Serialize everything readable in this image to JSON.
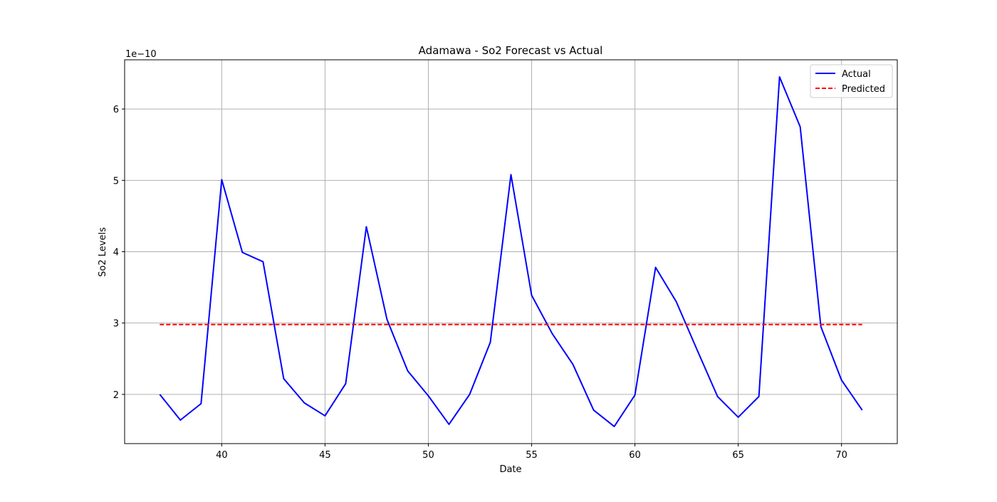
{
  "chart_data": {
    "type": "line",
    "title": "Adamawa - So2 Forecast vs Actual",
    "xlabel": "Date",
    "ylabel": "So2 Levels",
    "y_offset_label": "1e−10",
    "y_scale_factor": 1e-10,
    "xlim": [
      35.3,
      72.7
    ],
    "ylim": [
      1.31,
      6.69
    ],
    "grid": true,
    "legend_position": "top-right",
    "x_ticks": [
      40,
      45,
      50,
      55,
      60,
      65,
      70
    ],
    "y_ticks": [
      2,
      3,
      4,
      5,
      6
    ],
    "x": [
      37,
      38,
      39,
      40,
      41,
      42,
      43,
      44,
      45,
      46,
      47,
      48,
      49,
      50,
      51,
      52,
      53,
      54,
      55,
      56,
      57,
      58,
      59,
      60,
      61,
      62,
      63,
      64,
      65,
      66,
      67,
      68,
      69,
      70,
      71
    ],
    "series": [
      {
        "name": "Actual",
        "color": "#0000ff",
        "style": "solid",
        "values": [
          2.0,
          1.64,
          1.87,
          5.01,
          3.99,
          3.86,
          2.22,
          1.88,
          1.7,
          2.15,
          4.35,
          3.05,
          2.33,
          1.98,
          1.58,
          2.0,
          2.73,
          5.08,
          3.39,
          2.85,
          2.42,
          1.78,
          1.55,
          1.99,
          3.78,
          3.3,
          2.63,
          1.97,
          1.68,
          1.97,
          6.45,
          5.75,
          2.95,
          2.2,
          1.78
        ]
      },
      {
        "name": "Predicted",
        "color": "#ff0000",
        "style": "dashed",
        "values": [
          2.98,
          2.98,
          2.98,
          2.98,
          2.98,
          2.98,
          2.98,
          2.98,
          2.98,
          2.98,
          2.98,
          2.98,
          2.98,
          2.98,
          2.98,
          2.98,
          2.98,
          2.98,
          2.98,
          2.98,
          2.98,
          2.98,
          2.98,
          2.98,
          2.98,
          2.98,
          2.98,
          2.98,
          2.98,
          2.98,
          2.98,
          2.98,
          2.98,
          2.98,
          2.98
        ]
      }
    ]
  }
}
